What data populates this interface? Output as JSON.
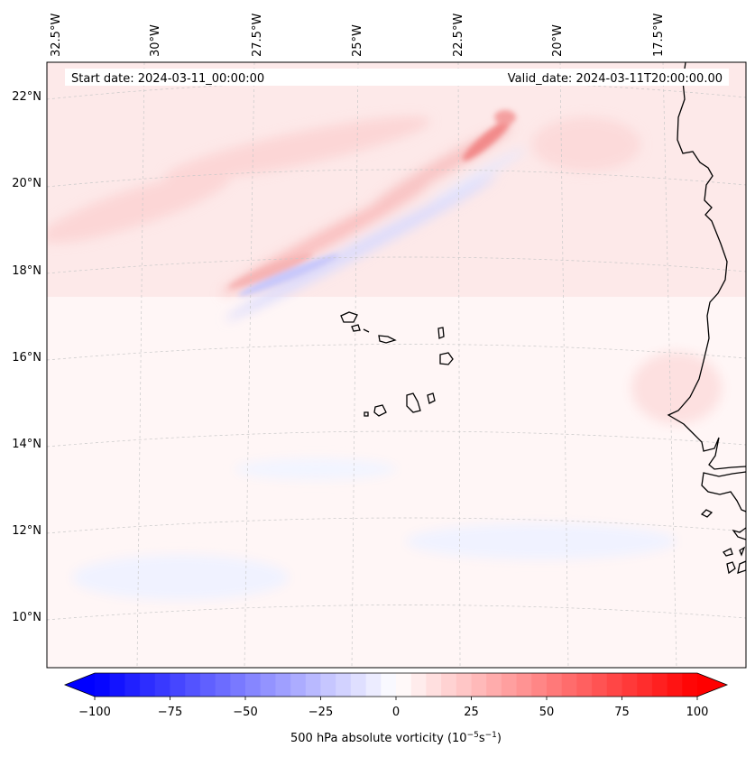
{
  "header": {
    "start_date": "Start date: 2024-03-11_00:00:00",
    "valid_date": "Valid_date: 2024-03-11T20:00:00.00"
  },
  "longitude_labels": [
    "32.5°W",
    "30°W",
    "27.5°W",
    "25°W",
    "22.5°W",
    "20°W",
    "17.5°W"
  ],
  "latitude_labels": [
    "22°N",
    "20°N",
    "18°N",
    "16°N",
    "14°N",
    "12°N",
    "10°N"
  ],
  "colorbar": {
    "ticks": [
      "−100",
      "−75",
      "−50",
      "−25",
      "0",
      "25",
      "50",
      "75",
      "100"
    ],
    "label_main": "500 hPa absolute vorticity (10",
    "label_exp1": "−5",
    "label_mid": "s",
    "label_exp2": "−1",
    "label_end": ")",
    "min": -100,
    "max": 100,
    "levels": 41,
    "neg_color": "#0000ff",
    "pos_color": "#ff0000"
  }
}
